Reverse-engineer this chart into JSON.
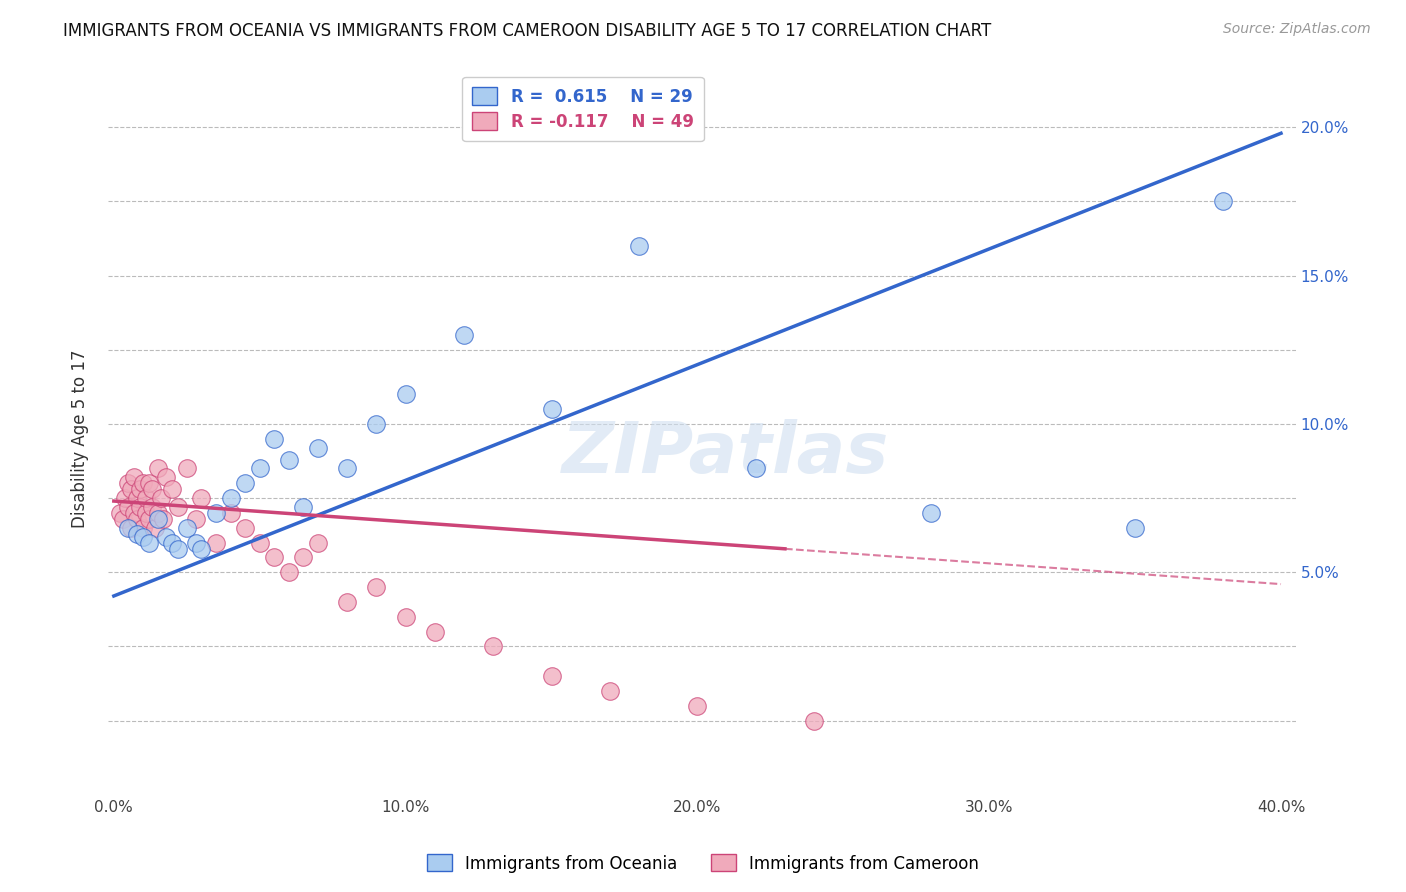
{
  "title": "IMMIGRANTS FROM OCEANIA VS IMMIGRANTS FROM CAMEROON DISABILITY AGE 5 TO 17 CORRELATION CHART",
  "source": "Source: ZipAtlas.com",
  "ylabel": "Disability Age 5 to 17",
  "watermark": "ZIPatlas",
  "series1_color": "#aaccf0",
  "series2_color": "#f0aabb",
  "line1_color": "#3366cc",
  "line2_color": "#cc4477",
  "background_color": "#ffffff",
  "legend_label1": "R =  0.615    N = 29",
  "legend_label2": "R = -0.117    N = 49",
  "legend_color1": "#3366cc",
  "legend_color2": "#cc4477",
  "bottom_label1": "Immigrants from Oceania",
  "bottom_label2": "Immigrants from Cameroon",
  "xlim_min": -0.002,
  "xlim_max": 0.405,
  "ylim_min": -0.025,
  "ylim_max": 0.215,
  "line1_x0": 0.0,
  "line1_y0": 0.042,
  "line1_x1": 0.4,
  "line1_y1": 0.198,
  "line2_x0": 0.0,
  "line2_y0": 0.074,
  "line2_x1": 0.4,
  "line2_y1": 0.046,
  "oceania_x": [
    0.005,
    0.008,
    0.01,
    0.012,
    0.015,
    0.018,
    0.02,
    0.022,
    0.025,
    0.028,
    0.03,
    0.035,
    0.04,
    0.045,
    0.05,
    0.055,
    0.06,
    0.065,
    0.07,
    0.08,
    0.09,
    0.1,
    0.12,
    0.15,
    0.18,
    0.22,
    0.28,
    0.35,
    0.38
  ],
  "oceania_y": [
    0.065,
    0.063,
    0.062,
    0.06,
    0.068,
    0.062,
    0.06,
    0.058,
    0.065,
    0.06,
    0.058,
    0.07,
    0.075,
    0.08,
    0.085,
    0.095,
    0.088,
    0.072,
    0.092,
    0.085,
    0.1,
    0.11,
    0.13,
    0.105,
    0.16,
    0.085,
    0.07,
    0.065,
    0.175
  ],
  "cameroon_x": [
    0.002,
    0.003,
    0.004,
    0.005,
    0.005,
    0.006,
    0.006,
    0.007,
    0.007,
    0.008,
    0.008,
    0.009,
    0.009,
    0.01,
    0.01,
    0.011,
    0.011,
    0.012,
    0.012,
    0.013,
    0.013,
    0.014,
    0.015,
    0.015,
    0.016,
    0.017,
    0.018,
    0.02,
    0.022,
    0.025,
    0.028,
    0.03,
    0.035,
    0.04,
    0.045,
    0.05,
    0.055,
    0.06,
    0.065,
    0.07,
    0.08,
    0.09,
    0.1,
    0.11,
    0.13,
    0.15,
    0.17,
    0.2,
    0.24
  ],
  "cameroon_y": [
    0.07,
    0.068,
    0.075,
    0.072,
    0.08,
    0.065,
    0.078,
    0.07,
    0.082,
    0.068,
    0.075,
    0.072,
    0.078,
    0.065,
    0.08,
    0.07,
    0.075,
    0.068,
    0.08,
    0.072,
    0.078,
    0.065,
    0.085,
    0.07,
    0.075,
    0.068,
    0.082,
    0.078,
    0.072,
    0.085,
    0.068,
    0.075,
    0.06,
    0.07,
    0.065,
    0.06,
    0.055,
    0.05,
    0.055,
    0.06,
    0.04,
    0.045,
    0.035,
    0.03,
    0.025,
    0.015,
    0.01,
    0.005,
    0.0
  ]
}
